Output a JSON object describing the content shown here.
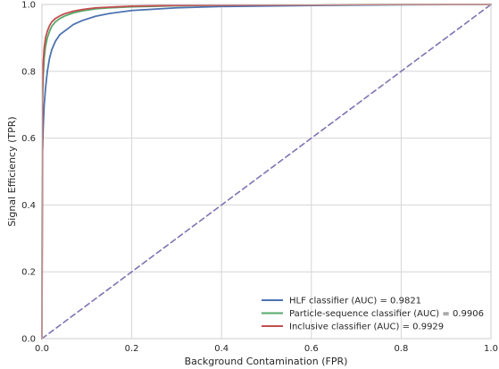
{
  "chart_data": {
    "type": "line",
    "xlabel": "Background Contamination (FPR)",
    "ylabel": "Signal Efficiency (TPR)",
    "xlim": [
      0,
      1
    ],
    "ylim": [
      0,
      1
    ],
    "xticks": [
      "0.0",
      "0.2",
      "0.4",
      "0.6",
      "0.8",
      "1.0"
    ],
    "yticks": [
      "0.0",
      "0.2",
      "0.4",
      "0.6",
      "0.8",
      "1.0"
    ],
    "grid": true,
    "legend_position": "lower-right",
    "series": [
      {
        "name": "HLF classifier (AUC) = 0.9821",
        "color": "#4c72b0",
        "dashed": false,
        "x": [
          0,
          0.001,
          0.003,
          0.005,
          0.008,
          0.012,
          0.017,
          0.022,
          0.03,
          0.04,
          0.05,
          0.07,
          0.09,
          0.12,
          0.15,
          0.2,
          0.3,
          0.4,
          0.6,
          0.8,
          1.0
        ],
        "y": [
          0,
          0.55,
          0.64,
          0.7,
          0.75,
          0.8,
          0.84,
          0.865,
          0.89,
          0.91,
          0.92,
          0.94,
          0.952,
          0.965,
          0.973,
          0.982,
          0.99,
          0.994,
          0.997,
          0.999,
          1.0
        ]
      },
      {
        "name": "Particle-sequence classifier (AUC) = 0.9906",
        "color": "#55a868",
        "dashed": false,
        "x": [
          0,
          0.001,
          0.003,
          0.005,
          0.008,
          0.012,
          0.017,
          0.022,
          0.03,
          0.04,
          0.05,
          0.07,
          0.09,
          0.12,
          0.15,
          0.2,
          0.3,
          0.4,
          0.6,
          0.8,
          1.0
        ],
        "y": [
          0,
          0.7,
          0.79,
          0.84,
          0.875,
          0.9,
          0.92,
          0.935,
          0.948,
          0.958,
          0.965,
          0.975,
          0.981,
          0.987,
          0.99,
          0.993,
          0.996,
          0.998,
          0.999,
          1.0,
          1.0
        ]
      },
      {
        "name": "Inclusive classifier (AUC) = 0.9929",
        "color": "#c44e52",
        "dashed": false,
        "x": [
          0,
          0.001,
          0.003,
          0.005,
          0.008,
          0.012,
          0.017,
          0.022,
          0.03,
          0.04,
          0.05,
          0.07,
          0.09,
          0.12,
          0.15,
          0.2,
          0.3,
          0.4,
          0.6,
          0.8,
          1.0
        ],
        "y": [
          0,
          0.74,
          0.83,
          0.87,
          0.9,
          0.92,
          0.937,
          0.948,
          0.958,
          0.966,
          0.972,
          0.98,
          0.985,
          0.99,
          0.992,
          0.995,
          0.997,
          0.998,
          0.999,
          1.0,
          1.0
        ]
      },
      {
        "color": "#8172b2",
        "dashed": true,
        "x": [
          0,
          1
        ],
        "y": [
          0,
          1
        ]
      }
    ]
  }
}
